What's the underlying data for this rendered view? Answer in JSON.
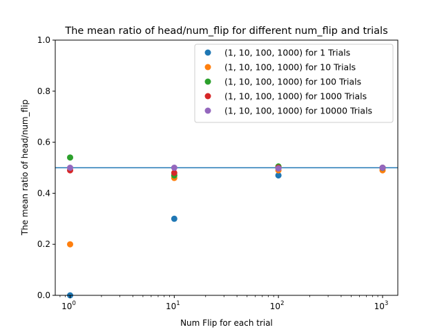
{
  "chart_data": {
    "type": "scatter",
    "title": "The mean ratio of head/num_flip for different num_flip and trials",
    "xlabel": "Num Flip for each trial",
    "ylabel": "The mean ratio of head/num_flip",
    "xscale": "log",
    "xlim": [
      0.72,
      1400
    ],
    "ylim": [
      0,
      1.0
    ],
    "x_major_ticks": [
      1,
      10,
      100,
      1000
    ],
    "x_tick_labels": [
      {
        "base": "10",
        "exp": "0"
      },
      {
        "base": "10",
        "exp": "1"
      },
      {
        "base": "10",
        "exp": "2"
      },
      {
        "base": "10",
        "exp": "3"
      }
    ],
    "y_ticks": [
      0.0,
      0.2,
      0.4,
      0.6,
      0.8,
      1.0
    ],
    "y_tick_labels": [
      "0.0",
      "0.2",
      "0.4",
      "0.6",
      "0.8",
      "1.0"
    ],
    "x": [
      1,
      10,
      100,
      1000
    ],
    "reference_line": {
      "y": 0.5,
      "color": "#1f77b4"
    },
    "grid": false,
    "legend_position": "top-right",
    "series": [
      {
        "name": "(1, 10, 100, 1000) for 1 Trials",
        "color": "#1f77b4",
        "values": [
          0.0,
          0.3,
          0.47,
          0.5
        ]
      },
      {
        "name": "(1, 10, 100, 1000) for 10 Trials",
        "color": "#ff7f0e",
        "values": [
          0.2,
          0.46,
          0.49,
          0.49
        ]
      },
      {
        "name": "(1, 10, 100, 1000) for 100 Trials",
        "color": "#2ca02c",
        "values": [
          0.54,
          0.47,
          0.505,
          0.499
        ]
      },
      {
        "name": "(1, 10, 100, 1000) for 1000 Trials",
        "color": "#d62728",
        "values": [
          0.49,
          0.48,
          0.5,
          0.5
        ]
      },
      {
        "name": "(1, 10, 100, 1000) for 10000 Trials",
        "color": "#9467bd",
        "values": [
          0.5,
          0.5,
          0.497,
          0.5
        ]
      }
    ]
  }
}
